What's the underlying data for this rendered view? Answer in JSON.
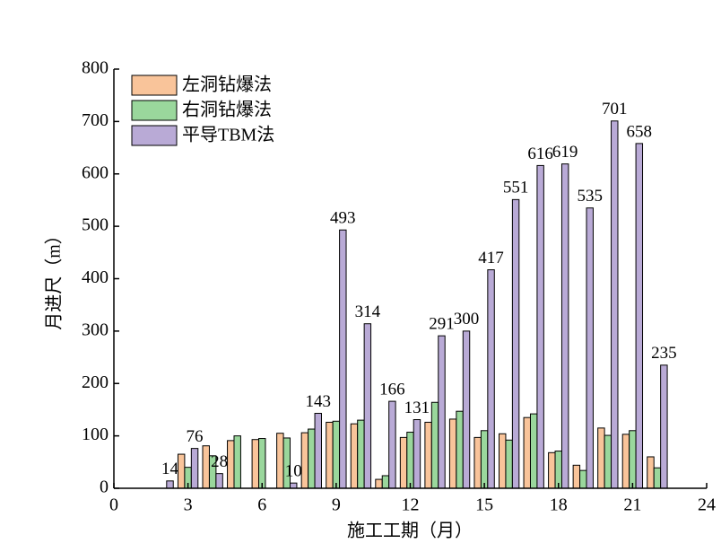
{
  "chart_data": {
    "type": "bar",
    "x_label": "施工工期（月）",
    "y_label": "月进尺（m）",
    "x": [
      2,
      3,
      4,
      5,
      6,
      7,
      8,
      9,
      10,
      11,
      12,
      13,
      14,
      15,
      16,
      17,
      18,
      19,
      20,
      21,
      22
    ],
    "series": [
      {
        "name": "左洞钻爆法",
        "color": "#f9c49a",
        "show_labels": false,
        "values": [
          null,
          65,
          81,
          91,
          93,
          105,
          106,
          126,
          123,
          17,
          97,
          126,
          132,
          97,
          104,
          135,
          68,
          44,
          115,
          103,
          60
        ]
      },
      {
        "name": "右洞钻爆法",
        "color": "#9ad79c",
        "show_labels": false,
        "values": [
          null,
          40,
          62,
          100,
          95,
          96,
          113,
          128,
          130,
          24,
          107,
          164,
          147,
          110,
          92,
          142,
          71,
          34,
          101,
          110,
          39
        ]
      },
      {
        "name": "平导TBM法",
        "color": "#b9aad6",
        "show_labels": true,
        "values": [
          14,
          76,
          28,
          null,
          null,
          10,
          143,
          493,
          314,
          166,
          131,
          291,
          300,
          417,
          551,
          616,
          619,
          535,
          701,
          658,
          235
        ]
      }
    ],
    "xlim": [
      0,
      24
    ],
    "xticks": [
      0,
      3,
      6,
      9,
      12,
      15,
      18,
      21,
      24
    ],
    "ylim": [
      0,
      800
    ],
    "yticks": [
      0,
      100,
      200,
      300,
      400,
      500,
      600,
      700,
      800
    ],
    "legend": "upper-left"
  }
}
